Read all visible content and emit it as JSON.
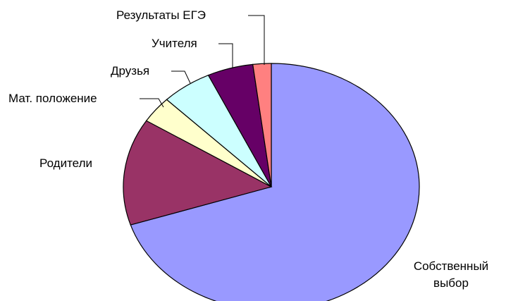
{
  "chart_data": {
    "type": "pie",
    "categories": [
      "Собственный выбор",
      "Родители",
      "Мат. положение",
      "Друзья",
      "Учителя",
      "Результаты ЕГЭ"
    ],
    "values": [
      70,
      14,
      3.5,
      5.5,
      5,
      2
    ],
    "colors": [
      "#9999ff",
      "#993366",
      "#ffffcc",
      "#ccffff",
      "#660066",
      "#ff8080"
    ]
  }
}
